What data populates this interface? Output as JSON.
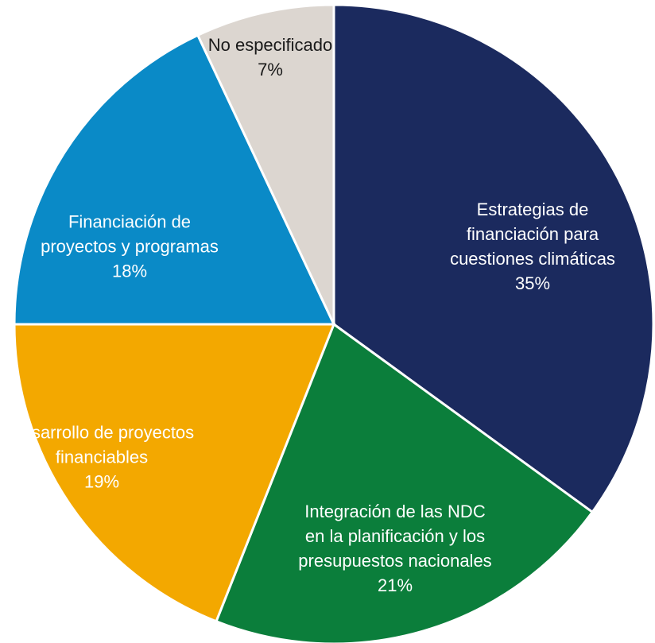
{
  "chart_data": {
    "type": "pie",
    "categories": [
      "Estrategias de financiación para cuestiones climáticas",
      "Integración de las NDC en la planificación y los presupuestos nacionales",
      "Desarrollo de proyectos financiables",
      "Financiación de proyectos y programas",
      "No especificado"
    ],
    "values": [
      35,
      21,
      19,
      18,
      7
    ],
    "value_labels": [
      "35%",
      "21%",
      "19%",
      "18%",
      "7%"
    ],
    "colors": [
      "#1b2a5e",
      "#0b7e3b",
      "#f3a800",
      "#0a8ac7",
      "#dcd6d0"
    ],
    "label_colors": [
      "#ffffff",
      "#ffffff",
      "#ffffff",
      "#ffffff",
      "#1a1a1a"
    ]
  }
}
